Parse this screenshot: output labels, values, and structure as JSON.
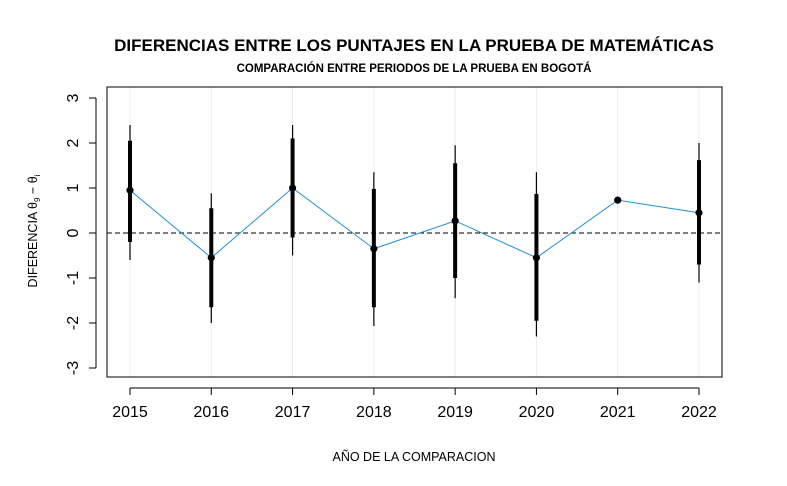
{
  "chart_data": {
    "type": "line",
    "title": "DIFERENCIAS ENTRE LOS PUNTAJES EN LA PRUEBA DE MATEMÁTICAS",
    "subtitle": "COMPARACIÓN ENTRE PERIODOS DE LA PRUEBA EN BOGOTÁ",
    "xlabel": "AÑO DE LA COMPARACION",
    "ylabel_prefix": "DIFERENCIA θ",
    "ylabel_sub1": "9",
    "ylabel_minus": " − θ",
    "ylabel_sub2": "i",
    "categories": [
      "2015",
      "2016",
      "2017",
      "2018",
      "2019",
      "2020",
      "2021",
      "2022"
    ],
    "ylim": [
      -3,
      3
    ],
    "yticks": [
      "-3",
      "-2",
      "-1",
      "0",
      "1",
      "2",
      "3"
    ],
    "reference_line": 0,
    "grid": true,
    "colors": {
      "line": "#1f8dd6",
      "points": "#000000",
      "reference": "#000000"
    },
    "series": [
      {
        "values": [
          0.95,
          -0.55,
          1.0,
          -0.35,
          0.27,
          -0.55,
          0.73,
          0.45
        ],
        "inner_low": [
          -0.2,
          -1.65,
          -0.1,
          -1.65,
          -1.0,
          -1.95,
          0.73,
          -0.7
        ],
        "inner_high": [
          2.05,
          0.55,
          2.1,
          0.98,
          1.55,
          0.87,
          0.73,
          1.62
        ],
        "outer_low": [
          -0.6,
          -2.0,
          -0.5,
          -2.07,
          -1.45,
          -2.3,
          0.73,
          -1.1
        ],
        "outer_high": [
          2.4,
          0.88,
          2.4,
          1.35,
          1.95,
          1.35,
          0.73,
          2.0
        ]
      }
    ]
  }
}
